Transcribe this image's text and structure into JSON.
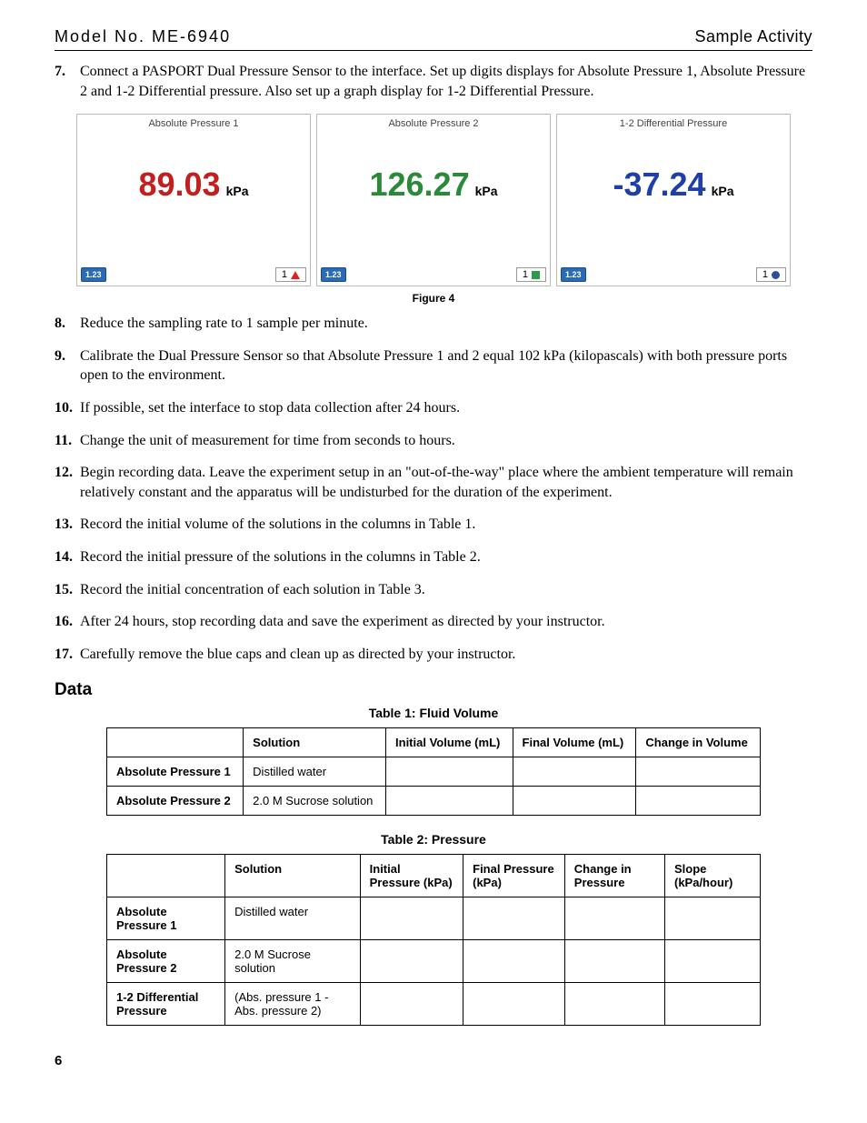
{
  "header": {
    "left": "Model No. ME-6940",
    "right": "Sample Activity"
  },
  "steps": {
    "s7": {
      "num": "7.",
      "text": "Connect a PASPORT Dual Pressure Sensor to the interface. Set up digits displays for Absolute Pressure 1, Absolute Pressure 2 and 1-2 Differential pressure. Also set up a graph display for 1-2 Differential Pressure."
    },
    "s8": {
      "num": "8.",
      "text": "Reduce the sampling rate to 1 sample per minute."
    },
    "s9": {
      "num": "9.",
      "text": "Calibrate the Dual Pressure Sensor so that Absolute Pressure 1 and 2 equal 102 kPa (kilopascals) with both pressure ports open to the environment."
    },
    "s10": {
      "num": "10.",
      "text": "If possible, set the interface to stop data collection after 24 hours."
    },
    "s11": {
      "num": "11.",
      "text": "Change the unit of measurement for time from seconds to hours."
    },
    "s12": {
      "num": "12.",
      "text": "Begin recording data. Leave the experiment setup in an \"out-of-the-way\" place where the ambient temperature will remain relatively constant and the apparatus will be undisturbed for the duration of the experiment."
    },
    "s13": {
      "num": "13.",
      "text": "Record the initial volume of the solutions in the columns in Table 1."
    },
    "s14": {
      "num": "14.",
      "text": "Record the initial pressure of the solutions in the columns in Table 2."
    },
    "s15": {
      "num": "15.",
      "text": "Record the initial concentration of each solution in Table 3."
    },
    "s16": {
      "num": "16.",
      "text": "After 24 hours, stop recording data and save the experiment as directed by your instructor."
    },
    "s17": {
      "num": "17.",
      "text": "Carefully remove the blue caps and clean up as directed by your instructor."
    }
  },
  "figure": {
    "caption": "Figure 4",
    "panels": [
      {
        "title": "Absolute Pressure 1",
        "value": "89.03",
        "unit": "kPa",
        "color": "#c21f1f",
        "tag": "1.23",
        "marker_num": "1",
        "marker_shape": "tri"
      },
      {
        "title": "Absolute Pressure 2",
        "value": "126.27",
        "unit": "kPa",
        "color": "#2a8a3a",
        "tag": "1.23",
        "marker_num": "1",
        "marker_shape": "sq"
      },
      {
        "title": "1-2 Differential Pressure",
        "value": "-37.24",
        "unit": "kPa",
        "color": "#1f3fa8",
        "tag": "1.23",
        "marker_num": "1",
        "marker_shape": "cir"
      }
    ]
  },
  "data_heading": "Data",
  "table1": {
    "caption": "Table 1: Fluid Volume",
    "headers": [
      "",
      "Solution",
      "Initial Volume (mL)",
      "Final Volume (mL)",
      "Change in Volume"
    ],
    "rows": [
      [
        "Absolute Pressure 1",
        "Distilled water",
        "",
        "",
        ""
      ],
      [
        "Absolute Pressure 2",
        "2.0 M Sucrose solution",
        "",
        "",
        ""
      ]
    ]
  },
  "table2": {
    "caption": "Table 2: Pressure",
    "headers": [
      "",
      "Solution",
      "Initial Pressure (kPa)",
      "Final Pressure (kPa)",
      "Change in Pressure",
      "Slope (kPa/hour)"
    ],
    "rows": [
      [
        "Absolute Pressure 1",
        "Distilled water",
        "",
        "",
        "",
        ""
      ],
      [
        "Absolute Pressure 2",
        "2.0 M Sucrose solution",
        "",
        "",
        "",
        ""
      ],
      [
        "1-2 Differential Pressure",
        "(Abs. pressure 1 - Abs. pressure 2)",
        "",
        "",
        "",
        ""
      ]
    ]
  },
  "page_number": "6"
}
